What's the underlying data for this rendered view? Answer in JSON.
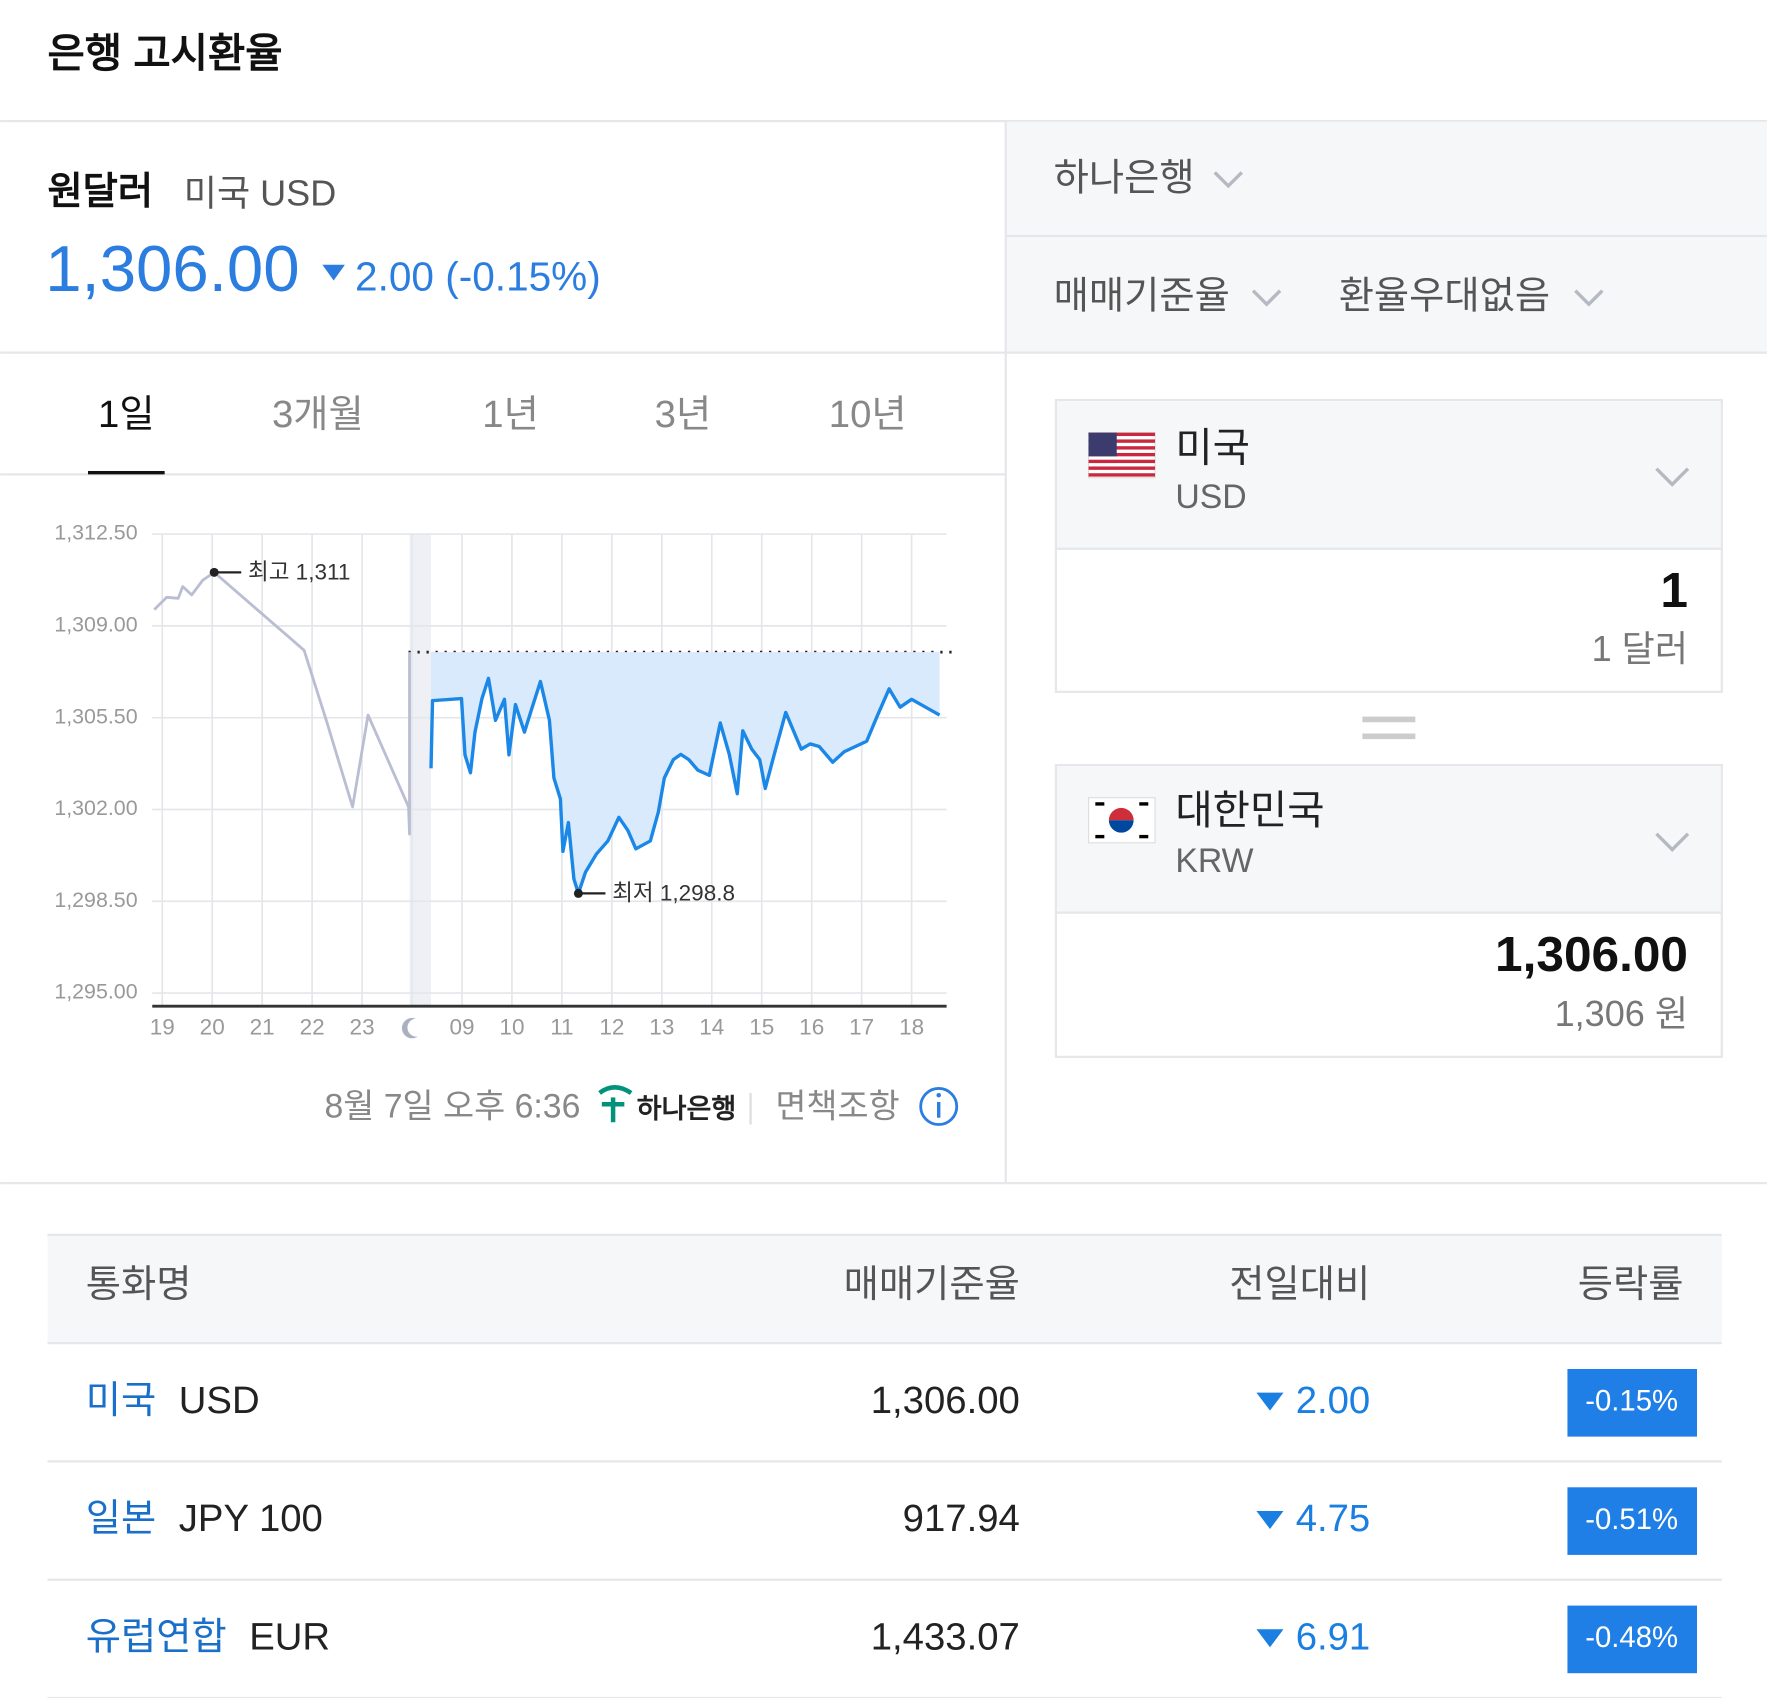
{
  "header": {
    "title": "은행 고시환율"
  },
  "summary": {
    "name": "원달러",
    "country_code": "미국 USD",
    "price": "1,306.00",
    "change": "2.00",
    "change_pct": "(-0.15%)"
  },
  "tabs": [
    "1일",
    "3개월",
    "1년",
    "3년",
    "10년"
  ],
  "active_tab": "1일",
  "chart_data": {
    "type": "line",
    "ylim": [
      1294.5,
      1312.5
    ],
    "yticks": [
      {
        "value": 1312.5,
        "label": "1,312.50"
      },
      {
        "value": 1309,
        "label": "1,309.00"
      },
      {
        "value": 1305.5,
        "label": "1,305.50"
      },
      {
        "value": 1302,
        "label": "1,302.00"
      },
      {
        "value": 1298.5,
        "label": "1,298.50"
      },
      {
        "value": 1295,
        "label": "1,295.00"
      }
    ],
    "xlim": [
      -0.2,
      15.7
    ],
    "categories": [
      "19",
      "20",
      "21",
      "22",
      "23",
      null,
      "09",
      "10",
      "11",
      "12",
      "13",
      "14",
      "15",
      "16",
      "17",
      "18"
    ],
    "grid": true,
    "reference_line": 1308,
    "series": [
      {
        "color": "#b9bed2",
        "x": [
          -0.16,
          0.09,
          0.32,
          0.41,
          0.59,
          0.81,
          1.04,
          2.84,
          3.29,
          3.81,
          4.12,
          4.93,
          4.95,
          4.95
        ],
        "values": [
          1309.62,
          1310.09,
          1310.05,
          1310.5,
          1310.18,
          1310.74,
          1311.04,
          1308.07,
          1305.36,
          1302.1,
          1305.6,
          1302.1,
          1301.06,
          1308.0
        ]
      },
      {
        "color": "#1b87e6",
        "fill_color": "#d8eafc",
        "x": [
          5.38,
          5.41,
          5.99,
          6.06,
          6.17,
          6.26,
          6.4,
          6.53,
          6.67,
          6.85,
          6.94,
          7.07,
          7.25,
          7.39,
          7.57,
          7.75,
          7.84,
          7.97,
          8.02,
          8.13,
          8.24,
          8.33,
          8.47,
          8.69,
          8.92,
          9.14,
          9.32,
          9.48,
          9.77,
          9.93,
          10.05,
          10.23,
          10.38,
          10.54,
          10.72,
          10.95,
          11.17,
          11.35,
          11.51,
          11.62,
          11.8,
          11.96,
          12.07,
          12.25,
          12.48,
          12.79,
          12.97,
          13.15,
          13.42,
          13.65,
          14.1,
          14.32,
          14.55,
          14.77,
          15.0,
          15.56
        ],
        "values": [
          1303.57,
          1306.15,
          1306.23,
          1304.08,
          1303.4,
          1304.95,
          1306.23,
          1307.0,
          1305.4,
          1306.2,
          1304.08,
          1306.0,
          1304.95,
          1305.8,
          1306.88,
          1305.4,
          1303.2,
          1302.4,
          1300.4,
          1301.5,
          1299.35,
          1298.8,
          1299.6,
          1300.3,
          1300.8,
          1301.7,
          1301.2,
          1300.5,
          1300.8,
          1301.9,
          1303.2,
          1303.9,
          1304.1,
          1303.9,
          1303.5,
          1303.3,
          1305.3,
          1304.1,
          1302.6,
          1305.0,
          1304.3,
          1303.9,
          1302.8,
          1304.1,
          1305.7,
          1304.3,
          1304.5,
          1304.4,
          1303.8,
          1304.2,
          1304.6,
          1305.6,
          1306.6,
          1305.9,
          1306.2,
          1305.6
        ]
      }
    ],
    "annotations": [
      {
        "text": "최고 1,311"
      },
      {
        "text": "최저 1,298.8"
      }
    ]
  },
  "footer": {
    "timestamp": "8월 7일 오후 6:36",
    "bank_logo": "하나은행",
    "disclaimer": "면책조항"
  },
  "controls": {
    "bank": "하나은행",
    "rate_type": "매매기준율",
    "discount": "환율우대없음"
  },
  "converter": [
    {
      "country": "미국",
      "code": "USD",
      "amount": "1",
      "amount_text": "1 달러"
    },
    {
      "country": "대한민국",
      "code": "KRW",
      "amount": "1,306.00",
      "amount_text": "1,306 원"
    }
  ],
  "table": {
    "columns": [
      "통화명",
      "매매기준율",
      "전일대비",
      "등락률"
    ],
    "rows": [
      {
        "name": "미국",
        "code": "USD",
        "rate": "1,306.00",
        "change": "2.00",
        "change_pct": "-0.15%"
      },
      {
        "name": "일본",
        "code": "JPY 100",
        "rate": "917.94",
        "change": "4.75",
        "change_pct": "-0.51%"
      },
      {
        "name": "유럽연합",
        "code": "EUR",
        "rate": "1,433.07",
        "change": "6.91",
        "change_pct": "-0.48%"
      }
    ]
  }
}
